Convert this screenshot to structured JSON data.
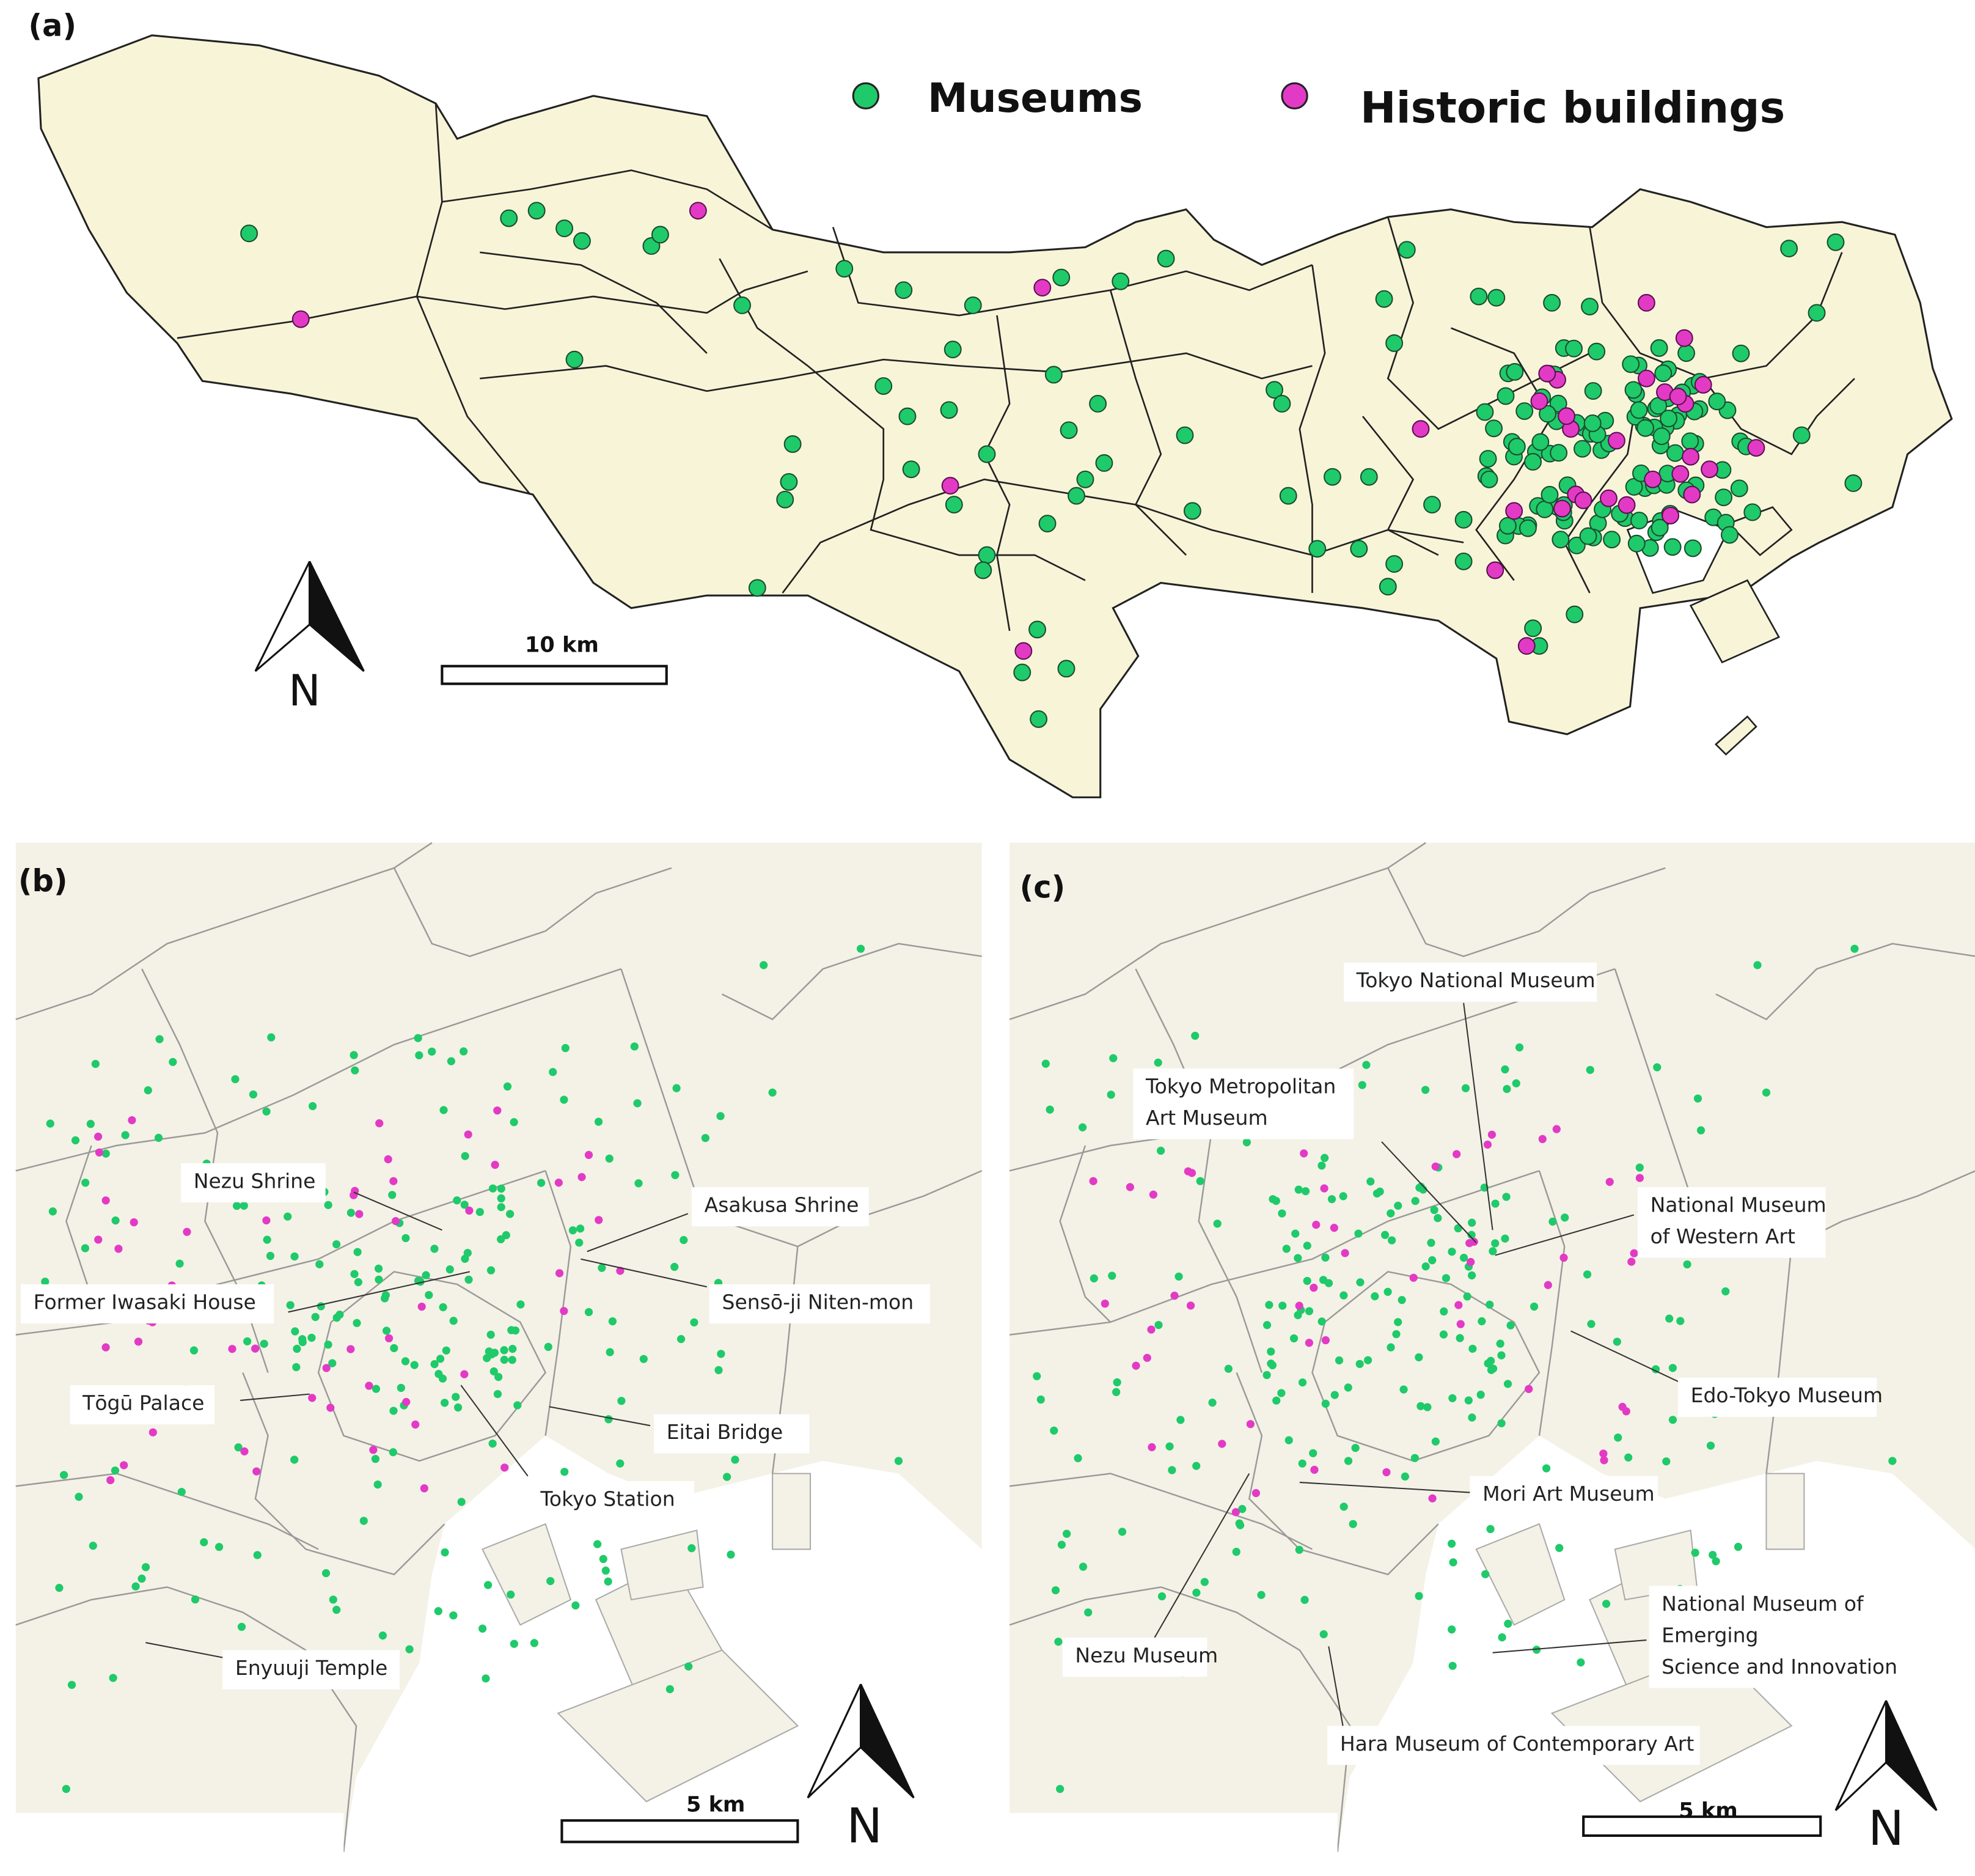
{
  "panels": [
    {
      "label": "(a)",
      "legend": [
        {
          "name": "Museums",
          "color": "#1fca6a"
        },
        {
          "name": "Historic buildings",
          "color": "#e33ac6"
        }
      ],
      "scale_bar": "10 km",
      "north": "N"
    },
    {
      "label": "(b)",
      "places": [
        [
          "Nezu Shrine"
        ],
        [
          "Asakusa Shrine"
        ],
        [
          "Former  Iwasaki House"
        ],
        [
          "Sensō-ji Niten-mon"
        ],
        [
          "Tōgū Palace"
        ],
        [
          "Eitai Bridge"
        ],
        [
          "Tokyo Station"
        ],
        [
          "Enyuuji Temple"
        ]
      ],
      "scale_bar": "5 km",
      "north": "N"
    },
    {
      "label": "(c)",
      "places": [
        [
          "Tokyo National Museum"
        ],
        [
          "Tokyo Metropolitan",
          "Art Museum"
        ],
        [
          "National Museum",
          "of Western Art"
        ],
        [
          "Edo-Tokyo Museum"
        ],
        [
          "Mori Art Museum"
        ],
        [
          "National Museum of",
          "Emerging",
          "Science and Innovation"
        ],
        [
          "Nezu Museum"
        ],
        [
          "Hara Museum of Contemporary  Art"
        ]
      ],
      "scale_bar": "5 km",
      "north": "N"
    }
  ]
}
